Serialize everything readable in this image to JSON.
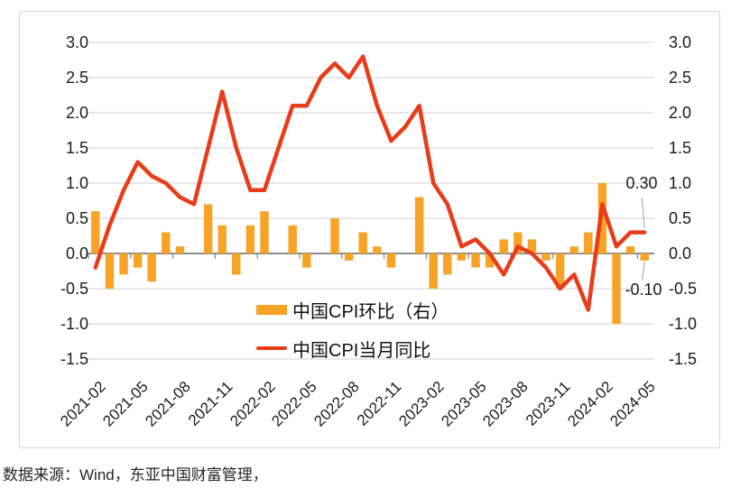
{
  "chart_data": {
    "type": "bar+line",
    "categories": [
      "2021-02",
      "2021-03",
      "2021-04",
      "2021-05",
      "2021-06",
      "2021-07",
      "2021-08",
      "2021-09",
      "2021-10",
      "2021-11",
      "2021-12",
      "2022-01",
      "2022-02",
      "2022-03",
      "2022-04",
      "2022-05",
      "2022-06",
      "2022-07",
      "2022-08",
      "2022-09",
      "2022-10",
      "2022-11",
      "2022-12",
      "2023-01",
      "2023-02",
      "2023-03",
      "2023-04",
      "2023-05",
      "2023-06",
      "2023-07",
      "2023-08",
      "2023-09",
      "2023-10",
      "2023-11",
      "2023-12",
      "2024-01",
      "2024-02",
      "2024-03",
      "2024-04",
      "2024-05"
    ],
    "series": [
      {
        "name": "中国CPI环比（右）",
        "type": "bar",
        "axis": "right",
        "color": "#F7A325",
        "values": [
          0.6,
          -0.5,
          -0.3,
          -0.2,
          -0.4,
          0.3,
          0.1,
          0.0,
          0.7,
          0.4,
          -0.3,
          0.4,
          0.6,
          0.0,
          0.4,
          -0.2,
          0.0,
          0.5,
          -0.1,
          0.3,
          0.1,
          -0.2,
          0.0,
          0.8,
          -0.5,
          -0.3,
          -0.1,
          -0.2,
          -0.2,
          0.2,
          0.3,
          0.2,
          -0.1,
          -0.5,
          0.1,
          0.3,
          1.0,
          -1.0,
          0.1,
          -0.1
        ]
      },
      {
        "name": "中国CPI当月同比",
        "type": "line",
        "axis": "left",
        "color": "#E83C1A",
        "values": [
          -0.2,
          0.4,
          0.9,
          1.3,
          1.1,
          1.0,
          0.8,
          0.7,
          1.5,
          2.3,
          1.5,
          0.9,
          0.9,
          1.5,
          2.1,
          2.1,
          2.5,
          2.7,
          2.5,
          2.8,
          2.1,
          1.6,
          1.8,
          2.1,
          1.0,
          0.7,
          0.1,
          0.2,
          0.0,
          -0.3,
          0.1,
          0.0,
          -0.2,
          -0.5,
          -0.3,
          -0.8,
          0.7,
          0.1,
          0.3,
          0.3
        ]
      }
    ],
    "ylim": [
      -1.5,
      3.0
    ],
    "ytick_step": 0.5,
    "yticks_left": [
      "3.0",
      "2.5",
      "2.0",
      "1.5",
      "1.0",
      "0.5",
      "0.0",
      "-0.5",
      "-1.0",
      "-1.5"
    ],
    "yticks_right": [
      "3.0",
      "2.5",
      "2.0",
      "1.5",
      "1.0",
      "0.5",
      "0.0",
      "-0.5",
      "-1.0",
      "-1.5"
    ],
    "x_tick_labels": [
      "2021-02",
      "2021-05",
      "2021-08",
      "2021-11",
      "2022-02",
      "2022-05",
      "2022-08",
      "2022-11",
      "2023-02",
      "2023-05",
      "2023-08",
      "2023-11",
      "2024-02",
      "2024-05"
    ],
    "x_tick_interval": 3,
    "grid": true,
    "legend_position": "inside-bottom-center"
  },
  "annotations": {
    "line_end_label": "0.30",
    "bar_end_label": "-0.10"
  },
  "source_note": "数据来源：Wind，东亚中国财富管理，",
  "colors": {
    "bar": "#F7A325",
    "line": "#E83C1A",
    "gridline": "#D9D9D9",
    "zero_axis": "#8C8C8C",
    "border": "#D5D5D5",
    "text": "#1A1A1A",
    "leader": "#AEAEAE"
  }
}
